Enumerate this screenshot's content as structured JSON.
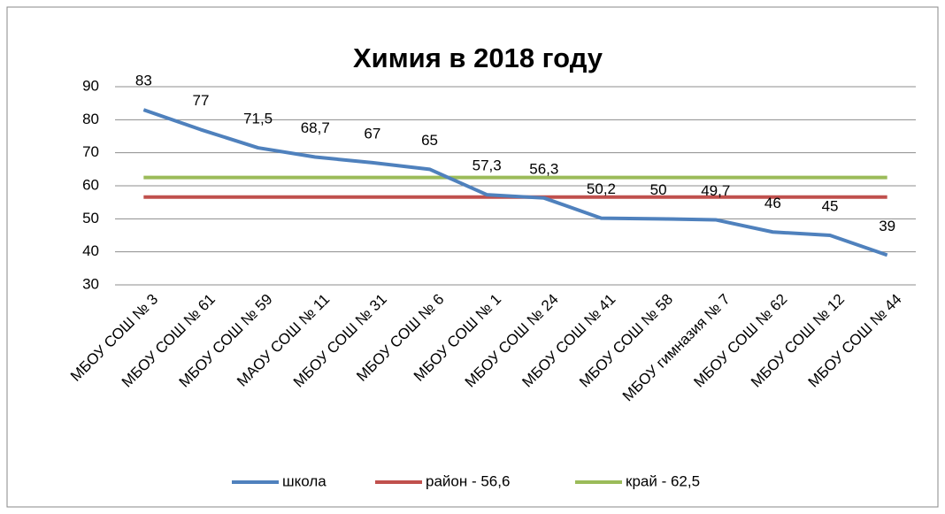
{
  "chart_data": {
    "type": "line",
    "title": "Химия в 2018 году",
    "categories": [
      "МБОУ СОШ № 3",
      "МБОУ СОШ № 61",
      "МБОУ СОШ № 59",
      "МАОУ СОШ № 11",
      "МБОУ СОШ № 31",
      "МБОУ СОШ № 6",
      "МБОУ СОШ № 1",
      "МБОУ СОШ № 24",
      "МБОУ СОШ № 41",
      "МБОУ СОШ № 58",
      "МБОУ гимназия № 7",
      "МБОУ СОШ № 62",
      "МБОУ СОШ № 12",
      "МБОУ СОШ № 44"
    ],
    "series": [
      {
        "name": "школа",
        "color": "#4f81bd",
        "values": [
          83,
          77,
          71.5,
          68.7,
          67,
          65,
          57.3,
          56.3,
          50.2,
          50,
          49.7,
          46,
          45,
          39
        ],
        "value_labels": [
          "83",
          "77",
          "71,5",
          "68,7",
          "67",
          "65",
          "57,3",
          "56,3",
          "50,2",
          "50",
          "49,7",
          "46",
          "45",
          "39"
        ]
      },
      {
        "name": "район - 56,6",
        "color": "#c0504d",
        "values": [
          56.6,
          56.6,
          56.6,
          56.6,
          56.6,
          56.6,
          56.6,
          56.6,
          56.6,
          56.6,
          56.6,
          56.6,
          56.6,
          56.6
        ]
      },
      {
        "name": "край - 62,5",
        "color": "#9bbb59",
        "values": [
          62.5,
          62.5,
          62.5,
          62.5,
          62.5,
          62.5,
          62.5,
          62.5,
          62.5,
          62.5,
          62.5,
          62.5,
          62.5,
          62.5
        ]
      }
    ],
    "ylim": [
      30,
      90
    ],
    "yticks": [
      30,
      40,
      50,
      60,
      70,
      80,
      90
    ],
    "grid": true,
    "legend": "bottom"
  }
}
